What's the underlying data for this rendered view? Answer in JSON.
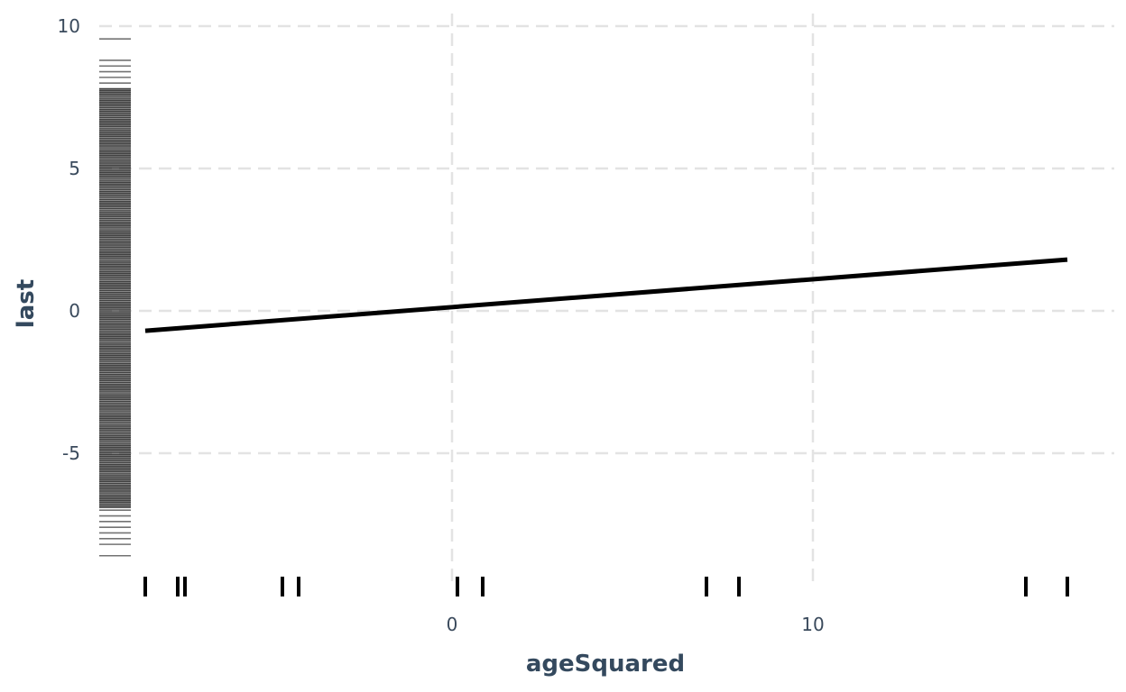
{
  "chart_data": {
    "type": "line",
    "xlabel": "ageSquared",
    "ylabel": "last",
    "xlim": [
      -9.8,
      18.4
    ],
    "ylim": [
      -9.0,
      10.6
    ],
    "x_ticks": [
      0,
      10
    ],
    "y_ticks": [
      -5,
      0,
      5,
      10
    ],
    "grid": true,
    "legend": "none",
    "series": [
      {
        "x": [
          -8.5,
          17.05
        ],
        "y": [
          -0.7,
          1.8
        ]
      }
    ],
    "x_rug": [
      -8.5,
      -7.6,
      -7.4,
      -4.7,
      -4.25,
      0.15,
      0.85,
      7.05,
      7.95,
      15.9,
      17.05
    ],
    "y_rug": {
      "sparse": [
        9.55,
        -8.6,
        8.8,
        8.6,
        8.4,
        8.2,
        8.0,
        -8.2,
        -8.0,
        -7.8,
        -7.6,
        -7.4,
        -7.2,
        -7.0
      ],
      "dense_range": [
        -6.9,
        7.8
      ]
    },
    "colors": {
      "line": "#000000",
      "rug": "#000000",
      "grid": "#e3e3e3",
      "text": "#3a4a5c"
    }
  }
}
